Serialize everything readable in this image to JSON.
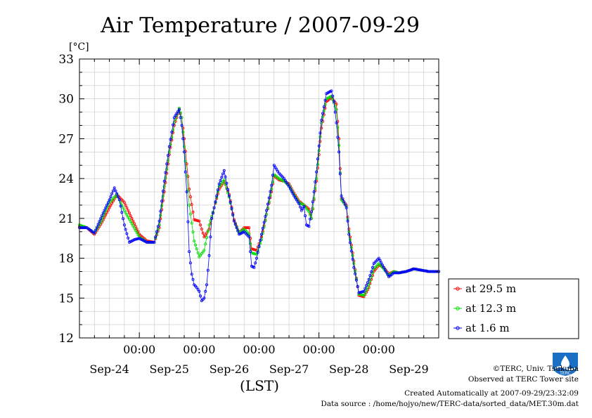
{
  "chart_data": {
    "type": "line",
    "title": "Air Temperature / 2007-09-29",
    "ylabel": "[°C]",
    "xlabel": "(LST)",
    "ylim": [
      12,
      33
    ],
    "yticks": [
      "12",
      "15",
      "18",
      "21",
      "24",
      "27",
      "30",
      "33"
    ],
    "xlim_hours": [
      0,
      144
    ],
    "time_ticks": [
      {
        "label": "00:00",
        "hour": 24
      },
      {
        "label": "00:00",
        "hour": 48
      },
      {
        "label": "00:00",
        "hour": 72
      },
      {
        "label": "00:00",
        "hour": 96
      },
      {
        "label": "00:00",
        "hour": 120
      }
    ],
    "day_labels": [
      {
        "label": "Sep-24",
        "hour": 12
      },
      {
        "label": "Sep-25",
        "hour": 36
      },
      {
        "label": "Sep-26",
        "hour": 60
      },
      {
        "label": "Sep-27",
        "hour": 84
      },
      {
        "label": "Sep-28",
        "hour": 108
      },
      {
        "label": "Sep-29",
        "hour": 132
      }
    ],
    "grid": true,
    "legend_position": "right",
    "series": [
      {
        "name": "at 29.5 m",
        "color": "#ff0000",
        "points": [
          [
            0,
            20.4
          ],
          [
            3,
            20.3
          ],
          [
            6,
            19.8
          ],
          [
            9,
            20.7
          ],
          [
            12,
            21.8
          ],
          [
            15,
            22.8
          ],
          [
            18,
            22.2
          ],
          [
            21,
            21.0
          ],
          [
            24,
            19.8
          ],
          [
            27,
            19.3
          ],
          [
            30,
            19.2
          ],
          [
            32,
            20.3
          ],
          [
            34,
            23.0
          ],
          [
            36,
            25.8
          ],
          [
            38,
            28.0
          ],
          [
            40,
            29.2
          ],
          [
            41,
            28.6
          ],
          [
            42,
            27.0
          ],
          [
            44,
            23.2
          ],
          [
            46,
            20.9
          ],
          [
            48,
            20.8
          ],
          [
            50,
            19.6
          ],
          [
            52,
            20.2
          ],
          [
            54,
            21.8
          ],
          [
            56,
            23.2
          ],
          [
            58,
            23.8
          ],
          [
            60,
            22.8
          ],
          [
            62,
            20.9
          ],
          [
            64,
            19.9
          ],
          [
            66,
            20.3
          ],
          [
            68,
            20.3
          ],
          [
            69,
            18.7
          ],
          [
            71,
            18.6
          ],
          [
            73,
            19.6
          ],
          [
            75,
            21.3
          ],
          [
            77,
            23.0
          ],
          [
            78,
            24.2
          ],
          [
            80,
            23.9
          ],
          [
            82,
            23.8
          ],
          [
            84,
            23.6
          ],
          [
            86,
            22.9
          ],
          [
            88,
            22.3
          ],
          [
            90,
            22.0
          ],
          [
            92,
            21.7
          ],
          [
            93,
            21.0
          ],
          [
            95,
            23.8
          ],
          [
            97,
            27.8
          ],
          [
            99,
            29.8
          ],
          [
            101,
            30.1
          ],
          [
            103,
            29.6
          ],
          [
            104,
            27.0
          ],
          [
            105,
            22.5
          ],
          [
            107,
            22.0
          ],
          [
            108,
            20.2
          ],
          [
            110,
            17.8
          ],
          [
            112,
            15.2
          ],
          [
            114,
            15.1
          ],
          [
            116,
            15.8
          ],
          [
            118,
            17.0
          ],
          [
            120,
            17.5
          ],
          [
            122,
            17.3
          ],
          [
            124,
            16.8
          ],
          [
            126,
            17.0
          ],
          [
            128,
            16.9
          ],
          [
            131,
            17.0
          ],
          [
            134,
            17.2
          ],
          [
            137,
            17.1
          ],
          [
            140,
            17.0
          ],
          [
            144,
            17.0
          ]
        ]
      },
      {
        "name": "at 12.3 m",
        "color": "#00dd00",
        "points": [
          [
            0,
            20.5
          ],
          [
            3,
            20.3
          ],
          [
            6,
            19.9
          ],
          [
            9,
            20.9
          ],
          [
            12,
            22.2
          ],
          [
            15,
            22.8
          ],
          [
            18,
            21.6
          ],
          [
            21,
            20.6
          ],
          [
            24,
            19.6
          ],
          [
            27,
            19.2
          ],
          [
            30,
            19.2
          ],
          [
            32,
            20.5
          ],
          [
            34,
            23.4
          ],
          [
            36,
            26.0
          ],
          [
            38,
            28.2
          ],
          [
            40,
            29.3
          ],
          [
            41,
            28.6
          ],
          [
            42,
            26.4
          ],
          [
            44,
            22.0
          ],
          [
            46,
            19.3
          ],
          [
            48,
            18.1
          ],
          [
            50,
            18.6
          ],
          [
            52,
            20.5
          ],
          [
            54,
            21.8
          ],
          [
            56,
            23.4
          ],
          [
            58,
            23.9
          ],
          [
            60,
            22.6
          ],
          [
            62,
            20.8
          ],
          [
            64,
            19.9
          ],
          [
            66,
            20.2
          ],
          [
            68,
            19.8
          ],
          [
            69,
            18.4
          ],
          [
            71,
            18.3
          ],
          [
            73,
            19.4
          ],
          [
            75,
            21.3
          ],
          [
            77,
            23.2
          ],
          [
            78,
            24.3
          ],
          [
            80,
            24.0
          ],
          [
            82,
            23.8
          ],
          [
            84,
            23.5
          ],
          [
            86,
            22.8
          ],
          [
            88,
            22.2
          ],
          [
            90,
            22.0
          ],
          [
            92,
            21.5
          ],
          [
            93,
            21.0
          ],
          [
            95,
            24.0
          ],
          [
            97,
            28.2
          ],
          [
            99,
            30.0
          ],
          [
            101,
            30.2
          ],
          [
            103,
            29.2
          ],
          [
            104,
            26.5
          ],
          [
            105,
            22.4
          ],
          [
            107,
            21.9
          ],
          [
            108,
            20.0
          ],
          [
            110,
            17.6
          ],
          [
            112,
            15.3
          ],
          [
            114,
            15.2
          ],
          [
            116,
            16.0
          ],
          [
            118,
            17.2
          ],
          [
            120,
            17.6
          ],
          [
            122,
            17.2
          ],
          [
            124,
            16.7
          ],
          [
            126,
            17.0
          ],
          [
            128,
            16.9
          ],
          [
            131,
            17.0
          ],
          [
            134,
            17.2
          ],
          [
            137,
            17.1
          ],
          [
            140,
            17.0
          ],
          [
            144,
            17.0
          ]
        ]
      },
      {
        "name": "at 1.6 m",
        "color": "#0000ff",
        "points": [
          [
            0,
            20.3
          ],
          [
            3,
            20.3
          ],
          [
            6,
            19.9
          ],
          [
            9,
            21.2
          ],
          [
            12,
            22.4
          ],
          [
            14,
            23.3
          ],
          [
            16,
            22.4
          ],
          [
            18,
            20.5
          ],
          [
            20,
            19.2
          ],
          [
            22,
            19.4
          ],
          [
            24,
            19.5
          ],
          [
            27,
            19.2
          ],
          [
            30,
            19.2
          ],
          [
            32,
            20.8
          ],
          [
            34,
            23.8
          ],
          [
            36,
            26.4
          ],
          [
            38,
            28.6
          ],
          [
            40,
            29.2
          ],
          [
            41,
            28.0
          ],
          [
            42,
            26.0
          ],
          [
            43,
            23.0
          ],
          [
            44,
            18.5
          ],
          [
            45,
            16.8
          ],
          [
            46,
            16.0
          ],
          [
            47,
            15.8
          ],
          [
            48,
            15.5
          ],
          [
            49,
            14.8
          ],
          [
            50,
            15.0
          ],
          [
            51,
            16.0
          ],
          [
            52,
            18.2
          ],
          [
            53,
            21.0
          ],
          [
            54,
            21.8
          ],
          [
            56,
            23.6
          ],
          [
            58,
            24.6
          ],
          [
            60,
            22.7
          ],
          [
            62,
            20.8
          ],
          [
            64,
            19.8
          ],
          [
            66,
            20.0
          ],
          [
            68,
            19.6
          ],
          [
            69,
            17.4
          ],
          [
            70,
            17.3
          ],
          [
            71,
            18.0
          ],
          [
            73,
            19.8
          ],
          [
            75,
            21.6
          ],
          [
            77,
            23.5
          ],
          [
            78,
            25.0
          ],
          [
            80,
            24.4
          ],
          [
            82,
            24.0
          ],
          [
            84,
            23.4
          ],
          [
            86,
            22.7
          ],
          [
            88,
            22.1
          ],
          [
            89,
            21.6
          ],
          [
            90,
            21.9
          ],
          [
            91,
            20.5
          ],
          [
            92,
            20.4
          ],
          [
            93,
            21.5
          ],
          [
            95,
            24.5
          ],
          [
            97,
            28.4
          ],
          [
            99,
            30.4
          ],
          [
            101,
            30.6
          ],
          [
            102,
            29.8
          ],
          [
            103,
            28.2
          ],
          [
            104,
            26.0
          ],
          [
            105,
            22.7
          ],
          [
            107,
            21.8
          ],
          [
            108,
            19.8
          ],
          [
            110,
            17.3
          ],
          [
            112,
            15.4
          ],
          [
            114,
            15.5
          ],
          [
            116,
            16.4
          ],
          [
            118,
            17.6
          ],
          [
            120,
            18.0
          ],
          [
            122,
            17.3
          ],
          [
            124,
            16.6
          ],
          [
            126,
            16.9
          ],
          [
            128,
            16.9
          ],
          [
            131,
            17.0
          ],
          [
            134,
            17.2
          ],
          [
            137,
            17.1
          ],
          [
            140,
            17.0
          ],
          [
            144,
            17.0
          ]
        ]
      }
    ]
  },
  "footer": {
    "copyright": "©TERC, Univ. Tsukuba",
    "observed": "Observed at TERC Tower site",
    "created": "Created Automatically at 2007-09-29/23:32:09",
    "source": "Data source : /home/hojyo/new/TERC-data/sorted_data/MET.30m.dat"
  },
  "logo": {
    "text": "TERC",
    "color": "#1a6fc4"
  }
}
